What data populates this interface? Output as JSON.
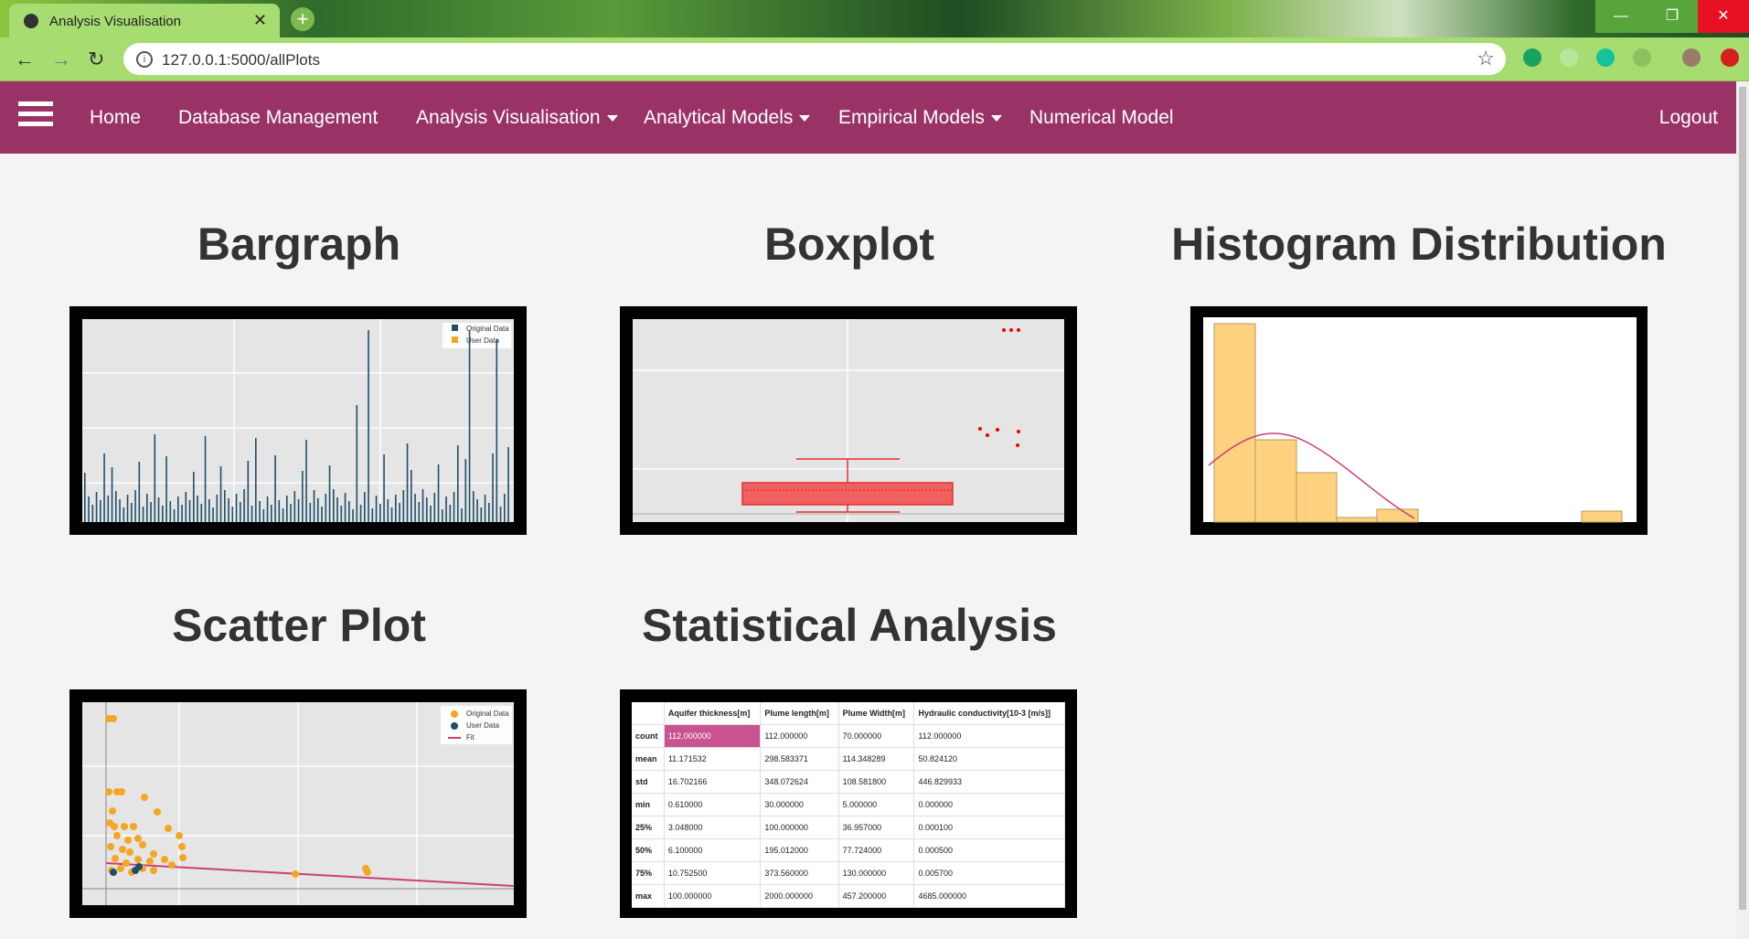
{
  "browser": {
    "tab_title": "Analysis Visualisation",
    "url": "127.0.0.1:5000/allPlots"
  },
  "nav": {
    "items": [
      {
        "label": "Home",
        "dropdown": false
      },
      {
        "label": "Database Management",
        "dropdown": false
      },
      {
        "label": "Analysis Visualisation",
        "dropdown": true
      },
      {
        "label": "Analytical Models",
        "dropdown": true
      },
      {
        "label": "Empirical Models",
        "dropdown": true
      },
      {
        "label": "Numerical Model",
        "dropdown": false
      }
    ],
    "logout": "Logout"
  },
  "cards": [
    {
      "title": "Bargraph",
      "legend": [
        "Original Data",
        "User Data"
      ]
    },
    {
      "title": "Boxplot"
    },
    {
      "title": "Histogram Distribution"
    },
    {
      "title": "Scatter Plot",
      "legend": [
        "Original Data",
        "User Data",
        "Fit"
      ]
    },
    {
      "title": "Statistical Analysis"
    }
  ],
  "stats_table": {
    "columns": [
      "Aquifer thickness[m]",
      "Plume length[m]",
      "Plume Width[m]",
      "Hydraulic conductivity[10-3 [m/s]]"
    ],
    "rows": [
      [
        "count",
        "112.000000",
        "112.000000",
        "70.000000",
        "112.000000"
      ],
      [
        "mean",
        "11.171532",
        "298.583371",
        "114.348289",
        "50.824120"
      ],
      [
        "std",
        "16.702166",
        "348.072624",
        "108.581800",
        "446.829933"
      ],
      [
        "min",
        "0.610000",
        "30.000000",
        "5.000000",
        "0.000000"
      ],
      [
        "25%",
        "3.048000",
        "100.000000",
        "36.957000",
        "0.000100"
      ],
      [
        "50%",
        "6.100000",
        "195.012000",
        "77.724000",
        "0.000500"
      ],
      [
        "75%",
        "10.752500",
        "373.560000",
        "130.000000",
        "0.005700"
      ],
      [
        "max",
        "100.000000",
        "2000.000000",
        "457.200000",
        "4685.000000"
      ]
    ]
  }
}
